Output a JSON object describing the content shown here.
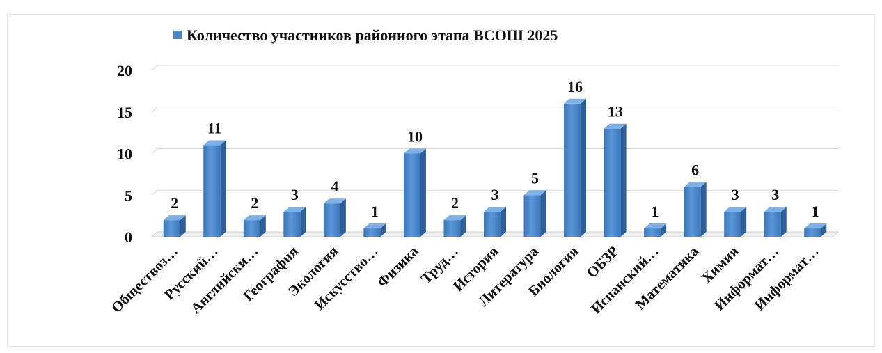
{
  "chart_data": {
    "type": "bar",
    "title": "",
    "xlabel": "",
    "ylabel": "",
    "ylim": [
      0,
      20
    ],
    "yticks": [
      0,
      5,
      10,
      15,
      20
    ],
    "grid": true,
    "legend_position": "top",
    "bar_color": "#4a86c8",
    "categories": [
      "Обществоз…",
      "Русский…",
      "Английски…",
      "География",
      "Экология",
      "Искусство…",
      "Физика",
      "Труд…",
      "История",
      "Литература",
      "Биология",
      "ОБЗР",
      "Испанский…",
      "Математика",
      "Химия",
      "Информат…",
      "Информат…"
    ],
    "series": [
      {
        "name": "Количество участников районного этапа ВСОШ 2025",
        "values": [
          2,
          11,
          2,
          3,
          4,
          1,
          10,
          2,
          3,
          5,
          16,
          13,
          1,
          6,
          3,
          3,
          1
        ]
      }
    ]
  }
}
